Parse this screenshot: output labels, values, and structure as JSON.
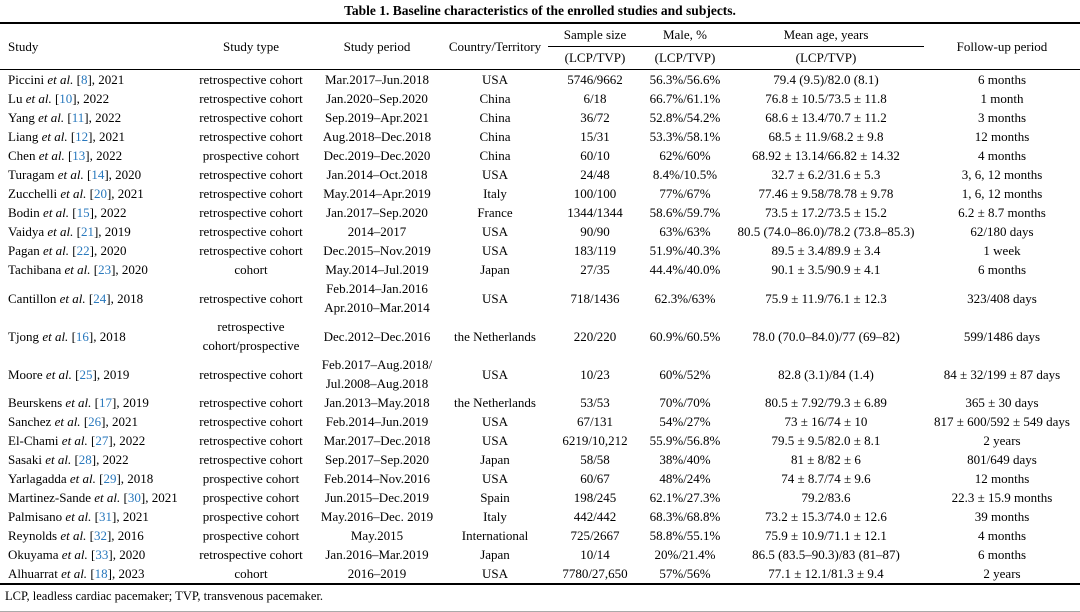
{
  "title": "Table 1. Baseline characteristics of the enrolled studies and subjects.",
  "footnote": "LCP, leadless cardiac pacemaker; TVP, transvenous pacemaker.",
  "colors": {
    "citation_link": "#2878bd"
  },
  "table": {
    "header": {
      "study": "Study",
      "study_type": "Study type",
      "study_period": "Study period",
      "country": "Country/Territory",
      "sample_size": "Sample size",
      "male_pct": "Male, %",
      "mean_age": "Mean age, years",
      "lcp_tvp": "(LCP/TVP)",
      "follow_up": "Follow-up period"
    },
    "rows": [
      {
        "study": "Piccini",
        "ref": "8",
        "year": "2021",
        "type": "retrospective cohort",
        "period": "Mar.2017–Jun.2018",
        "country": "USA",
        "sample": "5746/9662",
        "male": "56.3%/56.6%",
        "age": "79.4 (9.5)/82.0 (8.1)",
        "follow_up": "6 months"
      },
      {
        "study": "Lu",
        "ref": "10",
        "year": "2022",
        "type": "retrospective cohort",
        "period": "Jan.2020–Sep.2020",
        "country": "China",
        "sample": "6/18",
        "male": "66.7%/61.1%",
        "age": "76.8 ± 10.5/73.5 ± 11.8",
        "follow_up": "1 month"
      },
      {
        "study": "Yang",
        "ref": "11",
        "year": "2022",
        "type": "retrospective cohort",
        "period": "Sep.2019–Apr.2021",
        "country": "China",
        "sample": "36/72",
        "male": "52.8%/54.2%",
        "age": "68.6 ± 13.4/70.7 ± 11.2",
        "follow_up": "3 months"
      },
      {
        "study": "Liang",
        "ref": "12",
        "year": "2021",
        "type": "retrospective cohort",
        "period": "Aug.2018–Dec.2018",
        "country": "China",
        "sample": "15/31",
        "male": "53.3%/58.1%",
        "age": "68.5 ± 11.9/68.2 ± 9.8",
        "follow_up": "12 months"
      },
      {
        "study": "Chen",
        "ref": "13",
        "year": "2022",
        "type": "prospective cohort",
        "period": "Dec.2019–Dec.2020",
        "country": "China",
        "sample": "60/10",
        "male": "62%/60%",
        "age": "68.92 ± 13.14/66.82 ± 14.32",
        "follow_up": "4 months"
      },
      {
        "study": "Turagam",
        "ref": "14",
        "year": "2020",
        "type": "retrospective cohort",
        "period": "Jan.2014–Oct.2018",
        "country": "USA",
        "sample": "24/48",
        "male": "8.4%/10.5%",
        "age": "32.7 ± 6.2/31.6 ± 5.3",
        "follow_up": "3, 6, 12 months"
      },
      {
        "study": "Zucchelli",
        "ref": "20",
        "year": "2021",
        "type": "retrospective cohort",
        "period": "May.2014–Apr.2019",
        "country": "Italy",
        "sample": "100/100",
        "male": "77%/67%",
        "age": "77.46 ± 9.58/78.78 ± 9.78",
        "follow_up": "1, 6, 12 months"
      },
      {
        "study": "Bodin",
        "ref": "15",
        "year": "2022",
        "type": "retrospective cohort",
        "period": "Jan.2017–Sep.2020",
        "country": "France",
        "sample": "1344/1344",
        "male": "58.6%/59.7%",
        "age": "73.5 ± 17.2/73.5 ± 15.2",
        "follow_up": "6.2 ± 8.7 months"
      },
      {
        "study": "Vaidya",
        "ref": "21",
        "year": "2019",
        "type": "retrospective cohort",
        "period": "2014–2017",
        "country": "USA",
        "sample": "90/90",
        "male": "63%/63%",
        "age": "80.5 (74.0–86.0)/78.2 (73.8–85.3)",
        "follow_up": "62/180 days"
      },
      {
        "study": "Pagan",
        "ref": "22",
        "year": "2020",
        "type": "retrospective cohort",
        "period": "Dec.2015–Nov.2019",
        "country": "USA",
        "sample": "183/119",
        "male": "51.9%/40.3%",
        "age": "89.5 ± 3.4/89.9 ± 3.4",
        "follow_up": "1 week"
      },
      {
        "study": "Tachibana",
        "ref": "23",
        "year": "2020",
        "type": "cohort",
        "period": "May.2014–Jul.2019",
        "country": "Japan",
        "sample": "27/35",
        "male": "44.4%/40.0%",
        "age": "90.1 ± 3.5/90.9 ± 4.1",
        "follow_up": "6 months"
      },
      {
        "study": "Cantillon",
        "ref": "24",
        "year": "2018",
        "type": "retrospective cohort",
        "period": "Feb.2014–Jan.2016\nApr.2010–Mar.2014",
        "country": "USA",
        "sample": "718/1436",
        "male": "62.3%/63%",
        "age": "75.9 ± 11.9/76.1 ± 12.3",
        "follow_up": "323/408 days"
      },
      {
        "study": "Tjong",
        "ref": "16",
        "year": "2018",
        "type": "retrospective\ncohort/prospective",
        "period": "Dec.2012–Dec.2016",
        "country": "the Netherlands",
        "sample": "220/220",
        "male": "60.9%/60.5%",
        "age": "78.0 (70.0–84.0)/77 (69–82)",
        "follow_up": "599/1486 days"
      },
      {
        "study": "Moore",
        "ref": "25",
        "year": "2019",
        "type": "retrospective cohort",
        "period": "Feb.2017–Aug.2018/\nJul.2008–Aug.2018",
        "country": "USA",
        "sample": "10/23",
        "male": "60%/52%",
        "age": "82.8 (3.1)/84 (1.4)",
        "follow_up": "84 ± 32/199 ± 87 days"
      },
      {
        "study": "Beurskens",
        "ref": "17",
        "year": "2019",
        "type": "retrospective cohort",
        "period": "Jan.2013–May.2018",
        "country": "the Netherlands",
        "sample": "53/53",
        "male": "70%/70%",
        "age": "80.5 ± 7.92/79.3 ± 6.89",
        "follow_up": "365 ± 30 days"
      },
      {
        "study": "Sanchez",
        "ref": "26",
        "year": "2021",
        "type": "retrospective cohort",
        "period": "Feb.2014–Jun.2019",
        "country": "USA",
        "sample": "67/131",
        "male": "54%/27%",
        "age": "73 ± 16/74 ± 10",
        "follow_up": "817 ± 600/592 ± 549 days"
      },
      {
        "study": "El-Chami",
        "ref": "27",
        "year": "2022",
        "type": "retrospective cohort",
        "period": "Mar.2017–Dec.2018",
        "country": "USA",
        "sample": "6219/10,212",
        "male": "55.9%/56.8%",
        "age": "79.5 ± 9.5/82.0 ± 8.1",
        "follow_up": "2 years"
      },
      {
        "study": "Sasaki",
        "ref": "28",
        "year": "2022",
        "type": "retrospective cohort",
        "period": "Sep.2017–Sep.2020",
        "country": "Japan",
        "sample": "58/58",
        "male": "38%/40%",
        "age": "81 ± 8/82 ± 6",
        "follow_up": "801/649 days"
      },
      {
        "study": "Yarlagadda",
        "ref": "29",
        "year": "2018",
        "type": "prospective cohort",
        "period": "Feb.2014–Nov.2016",
        "country": "USA",
        "sample": "60/67",
        "male": "48%/24%",
        "age": "74 ± 8.7/74 ± 9.6",
        "follow_up": "12 months"
      },
      {
        "study": "Martinez-Sande",
        "ref": "30",
        "year": "2021",
        "type": "prospective cohort",
        "period": "Jun.2015–Dec.2019",
        "country": "Spain",
        "sample": "198/245",
        "male": "62.1%/27.3%",
        "age": "79.2/83.6",
        "follow_up": "22.3 ± 15.9 months"
      },
      {
        "study": "Palmisano",
        "ref": "31",
        "year": "2021",
        "type": "prospective cohort",
        "period": "May.2016–Dec. 2019",
        "country": "Italy",
        "sample": "442/442",
        "male": "68.3%/68.8%",
        "age": "73.2 ± 15.3/74.0 ± 12.6",
        "follow_up": "39 months"
      },
      {
        "study": "Reynolds",
        "ref": "32",
        "year": "2016",
        "type": "prospective cohort",
        "period": "May.2015",
        "country": "International",
        "sample": "725/2667",
        "male": "58.8%/55.1%",
        "age": "75.9 ± 10.9/71.1 ± 12.1",
        "follow_up": "4 months"
      },
      {
        "study": "Okuyama",
        "ref": "33",
        "year": "2020",
        "type": "retrospective cohort",
        "period": "Jan.2016–Mar.2019",
        "country": "Japan",
        "sample": "10/14",
        "male": "20%/21.4%",
        "age": "86.5 (83.5–90.3)/83 (81–87)",
        "follow_up": "6 months"
      },
      {
        "study": "Alhuarrat",
        "ref": "18",
        "year": "2023",
        "type": "cohort",
        "period": "2016–2019",
        "country": "USA",
        "sample": "7780/27,650",
        "male": "57%/56%",
        "age": "77.1 ± 12.1/81.3 ± 9.4",
        "follow_up": "2 years"
      }
    ]
  }
}
